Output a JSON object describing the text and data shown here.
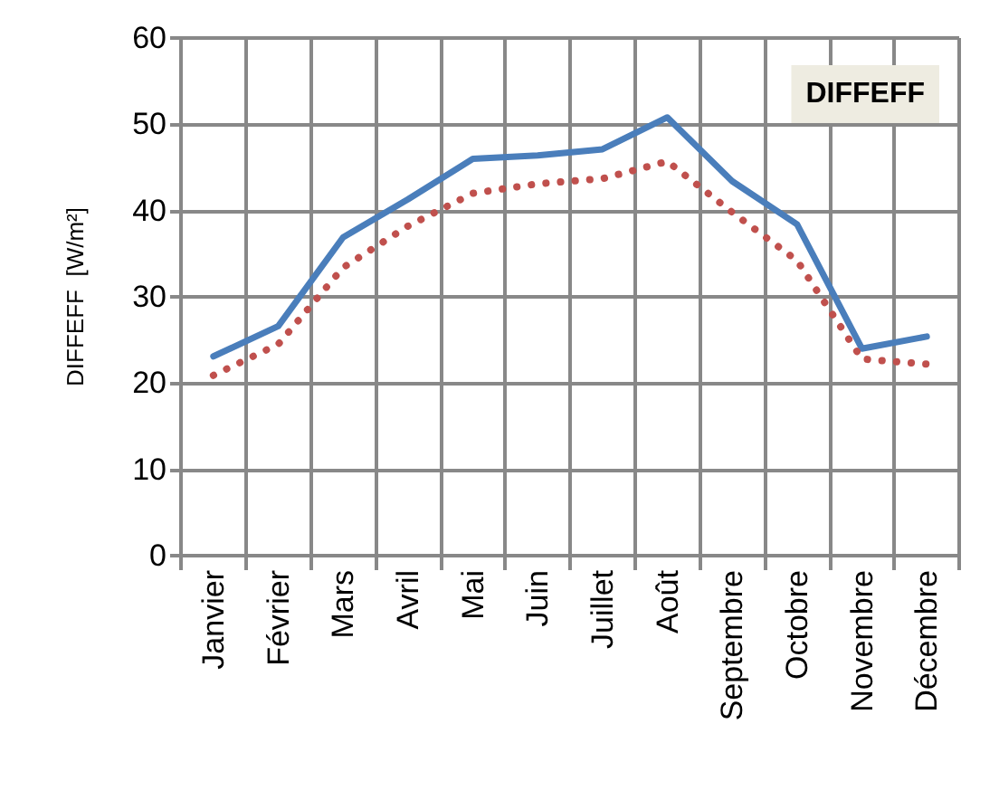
{
  "chart_data": {
    "type": "line",
    "ylabel": "DIFFEFF  [W/m²]",
    "annotations": [
      "DIFFEFF"
    ],
    "categories": [
      "Janvier",
      "Février",
      "Mars",
      "Avril",
      "Mai",
      "Juin",
      "Juillet",
      "Août",
      "Septembre",
      "Octobre",
      "Novembre",
      "Décembre"
    ],
    "series": [
      {
        "color": "#4a7ebb",
        "line_style": "solid",
        "values": [
          23.1,
          26.6,
          36.9,
          41.3,
          46.0,
          46.4,
          47.1,
          50.8,
          43.4,
          38.4,
          24.0,
          25.4
        ]
      },
      {
        "color": "#c0504d",
        "line_style": "dotted",
        "values": [
          20.9,
          24.5,
          33.4,
          38.2,
          42.0,
          43.1,
          43.7,
          45.7,
          39.8,
          34.2,
          22.8,
          22.2
        ]
      }
    ],
    "ylim": [
      0,
      60
    ],
    "yticks": [
      0,
      10,
      20,
      30,
      40,
      50,
      60
    ],
    "grid": true,
    "marker": "none"
  }
}
